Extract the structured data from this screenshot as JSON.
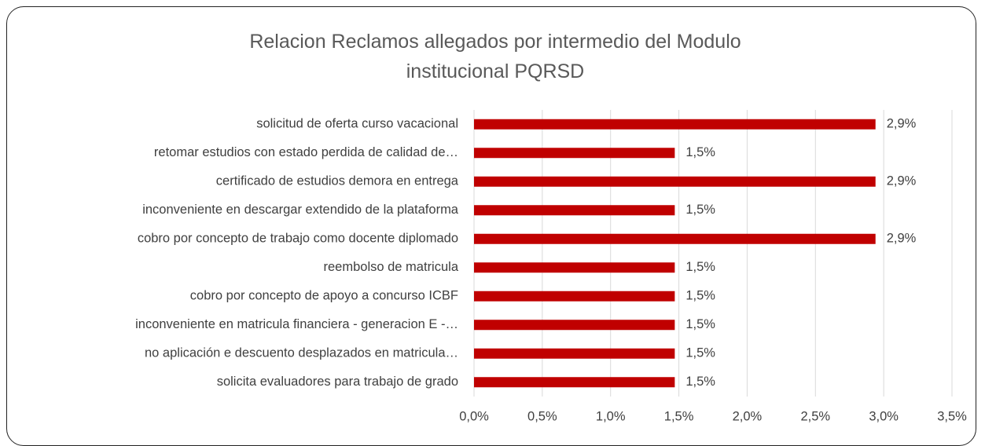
{
  "chart_data": {
    "type": "bar",
    "orientation": "horizontal",
    "title": "Relacion Reclamos allegados por intermedio del Modulo institucional PQRSD",
    "categories": [
      "solicitud de oferta curso vacacional",
      "retomar estudios con estado perdida de calidad de…",
      "certificado de estudios demora en entrega",
      "inconveniente en descargar extendido de la plataforma",
      "cobro por concepto de trabajo como docente diplomado",
      "reembolso de matricula",
      "cobro por concepto de apoyo a concurso ICBF",
      "inconveniente en matricula financiera - generacion E -…",
      "no  aplicación e descuento desplazados en matricula…",
      "solicita evaluadores para trabajo de grado"
    ],
    "values": [
      2.94,
      1.47,
      2.94,
      1.47,
      2.94,
      1.47,
      1.47,
      1.47,
      1.47,
      1.47
    ],
    "value_labels": [
      "2,9%",
      "1,5%",
      "2,9%",
      "1,5%",
      "2,9%",
      "1,5%",
      "1,5%",
      "1,5%",
      "1,5%",
      "1,5%"
    ],
    "color": "#c00000",
    "xlim": [
      0,
      3.5
    ],
    "xticks": [
      {
        "value": 0,
        "label": "0,0%"
      },
      {
        "value": 0.5,
        "label": "0,5%"
      },
      {
        "value": 1,
        "label": "1,0%"
      },
      {
        "value": 1.5,
        "label": "1,5%"
      },
      {
        "value": 2,
        "label": "2,0%"
      },
      {
        "value": 2.5,
        "label": "2,5%"
      },
      {
        "value": 3,
        "label": "3,0%"
      },
      {
        "value": 3.5,
        "label": "3,5%"
      }
    ],
    "grid": true
  }
}
